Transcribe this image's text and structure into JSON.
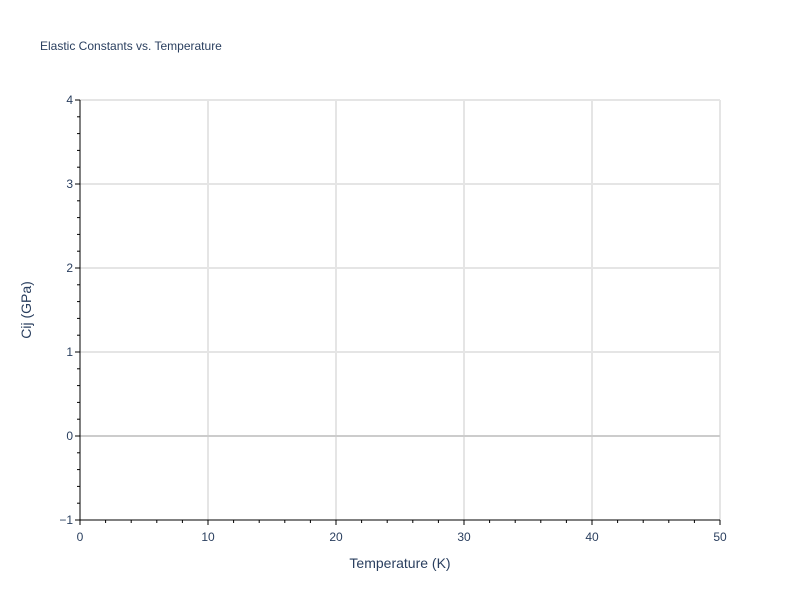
{
  "chart_data": {
    "type": "line",
    "title": "Elastic Constants vs. Temperature",
    "xlabel": "Temperature (K)",
    "ylabel": "Cij (GPa)",
    "xlim": [
      0,
      50
    ],
    "ylim": [
      -1,
      4
    ],
    "xticks": [
      "0",
      "10",
      "20",
      "30",
      "40",
      "50"
    ],
    "yticks": [
      "−1",
      "0",
      "1",
      "2",
      "3",
      "4"
    ],
    "grid": true,
    "series": []
  }
}
